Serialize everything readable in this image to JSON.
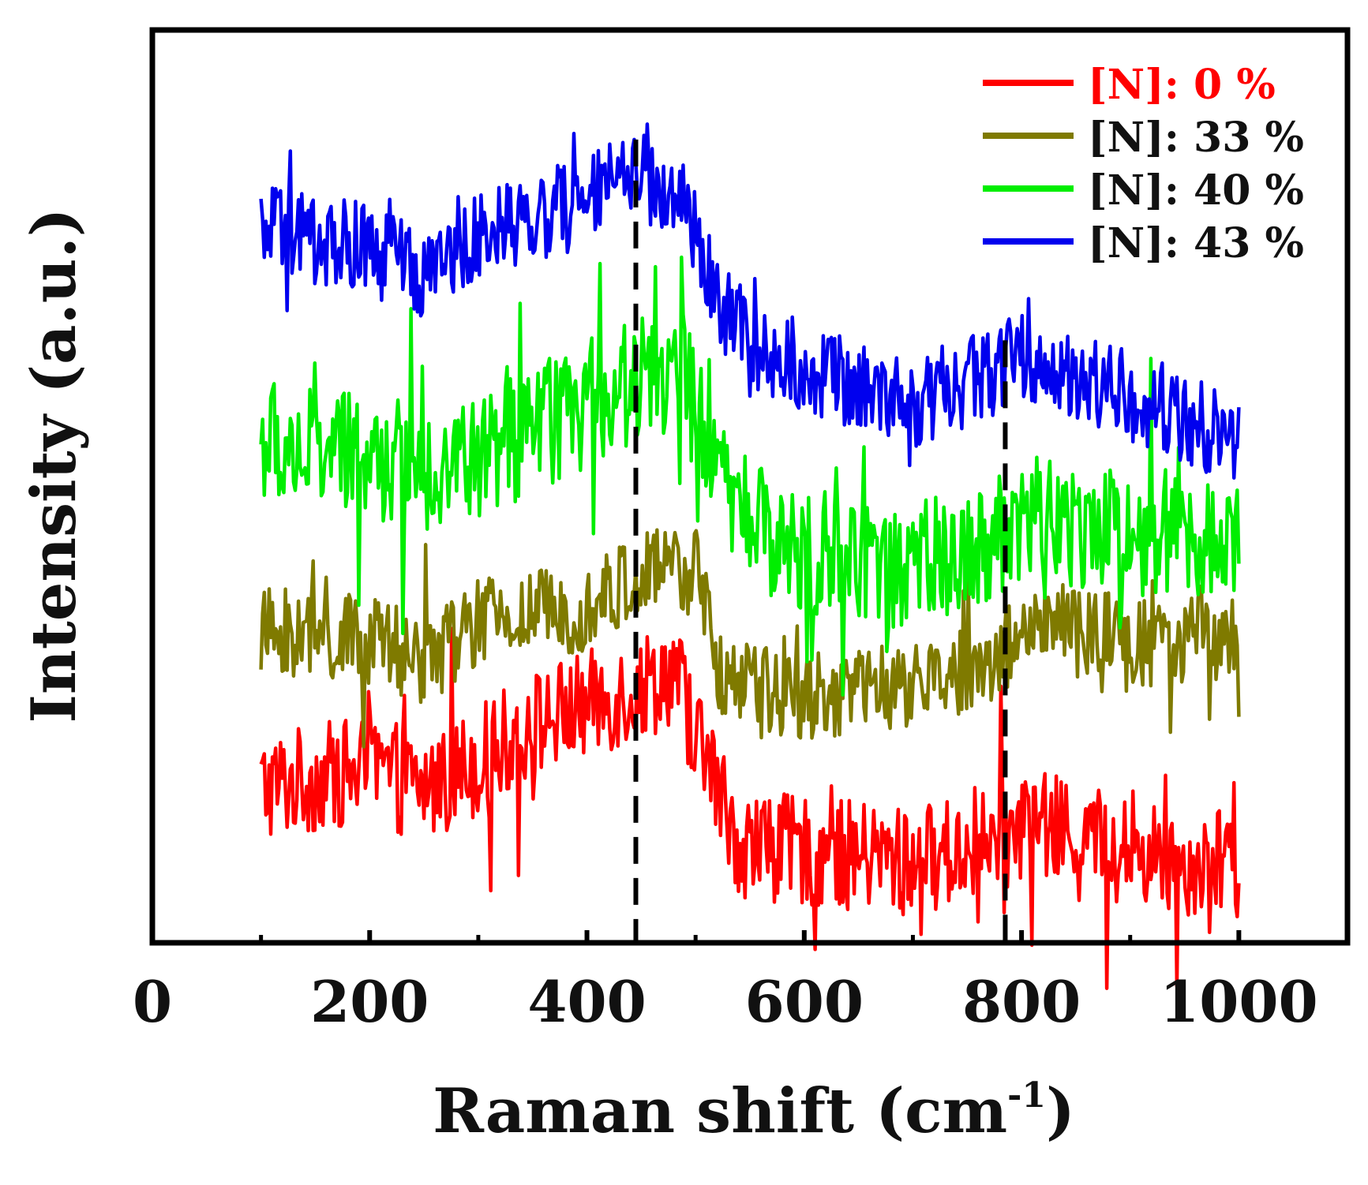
{
  "chart_data": {
    "type": "line",
    "title": "",
    "xlabel": "Raman shift (cm",
    "xlabel_sup": "-1",
    "xlabel_close": ")",
    "ylabel": "Intensity (a.u.)",
    "xlim": [
      0,
      1100
    ],
    "xticks": [
      0,
      200,
      400,
      600,
      800,
      1000
    ],
    "xtick_labels": [
      "0",
      "200",
      "400",
      "600",
      "800",
      "1000"
    ],
    "minor_xticks": [
      100,
      300,
      500,
      700,
      900
    ],
    "ylim": [
      0,
      100
    ],
    "yticks_shown": false,
    "legend_position": "top-right",
    "reference_lines": [
      {
        "x": 445,
        "style": "dashed",
        "color": "#000000"
      },
      {
        "x": 785,
        "style": "dashed",
        "color": "#000000"
      }
    ],
    "x_range": [
      100,
      1000
    ],
    "series": [
      {
        "name": "[N]: 0  %",
        "color": "#ff0000",
        "legend_color": "#ff0000",
        "profile": [
          [
            100,
            17
          ],
          [
            150,
            18
          ],
          [
            200,
            19
          ],
          [
            250,
            17
          ],
          [
            300,
            20
          ],
          [
            350,
            24
          ],
          [
            400,
            26
          ],
          [
            450,
            28
          ],
          [
            480,
            30
          ],
          [
            510,
            20
          ],
          [
            540,
            11
          ],
          [
            600,
            10
          ],
          [
            700,
            9
          ],
          [
            780,
            11
          ],
          [
            800,
            13
          ],
          [
            850,
            12
          ],
          [
            900,
            10
          ],
          [
            1000,
            8
          ]
        ],
        "noise": 6,
        "spike_frequency": 0.06
      },
      {
        "name": "[N]: 33 %",
        "color": "#7f7a00",
        "legend_color": "#7f7a00",
        "profile": [
          [
            100,
            34
          ],
          [
            200,
            33
          ],
          [
            250,
            31
          ],
          [
            300,
            35
          ],
          [
            400,
            37
          ],
          [
            450,
            40
          ],
          [
            500,
            41
          ],
          [
            520,
            30
          ],
          [
            550,
            28
          ],
          [
            600,
            27
          ],
          [
            700,
            28
          ],
          [
            780,
            31
          ],
          [
            800,
            35
          ],
          [
            900,
            33
          ],
          [
            1000,
            33
          ]
        ],
        "noise": 5,
        "spike_frequency": 0.05
      },
      {
        "name": "[N]: 40 %",
        "color": "#00ee00",
        "legend_color": "#00ee00",
        "profile": [
          [
            100,
            55
          ],
          [
            200,
            53
          ],
          [
            250,
            52
          ],
          [
            300,
            53
          ],
          [
            380,
            58
          ],
          [
            450,
            62
          ],
          [
            490,
            62
          ],
          [
            520,
            50
          ],
          [
            550,
            46
          ],
          [
            600,
            43
          ],
          [
            700,
            41
          ],
          [
            780,
            45
          ],
          [
            800,
            47
          ],
          [
            900,
            45
          ],
          [
            1000,
            45
          ]
        ],
        "noise": 7,
        "spike_frequency": 0.07
      },
      {
        "name": "[N]: 43 %",
        "color": "#0000ee",
        "legend_color": "#0000ee",
        "profile": [
          [
            100,
            78
          ],
          [
            200,
            76
          ],
          [
            250,
            73
          ],
          [
            300,
            78
          ],
          [
            400,
            81
          ],
          [
            440,
            85
          ],
          [
            490,
            81
          ],
          [
            520,
            70
          ],
          [
            560,
            65
          ],
          [
            600,
            63
          ],
          [
            700,
            59
          ],
          [
            750,
            62
          ],
          [
            800,
            64
          ],
          [
            900,
            60
          ],
          [
            1000,
            55
          ]
        ],
        "noise": 5,
        "spike_frequency": 0.05
      }
    ]
  }
}
